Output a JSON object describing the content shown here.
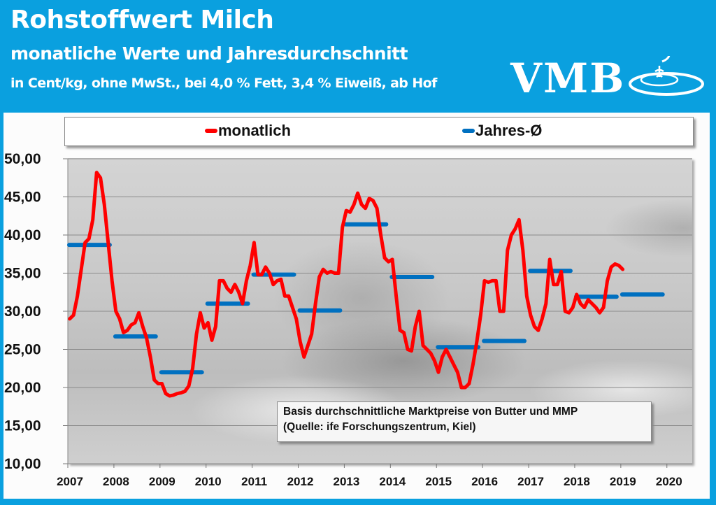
{
  "header": {
    "title": "Rohstoffwert Milch",
    "subtitle": "monatliche Werte und Jahresdurchschnitt",
    "unit_line": "in Cent/kg, ohne MwSt., bei 4,0 % Fett, 3,4 % Eiweiß, ab Hof",
    "logo_text": "VMB"
  },
  "note": {
    "line1": "Basis durchschnittliche Marktpreise von Butter und MMP",
    "line2": "(Quelle: ife Forschungszentrum, Kiel)"
  },
  "colors": {
    "header_bg": "#0aa0df",
    "monthly": "#ff0000",
    "annual": "#0070c0"
  },
  "chart_data": {
    "type": "line",
    "title": "Rohstoffwert Milch",
    "xlabel": "",
    "ylabel": "Cent/kg",
    "ylim": [
      10,
      50
    ],
    "yticks": [
      "50,00",
      "45,00",
      "40,00",
      "35,00",
      "30,00",
      "25,00",
      "20,00",
      "15,00",
      "10,00"
    ],
    "ytick_values": [
      50,
      45,
      40,
      35,
      30,
      25,
      20,
      15,
      10
    ],
    "xticks": [
      "2007",
      "2008",
      "2009",
      "2010",
      "2011",
      "2012",
      "2013",
      "2014",
      "2015",
      "2016",
      "2017",
      "2018",
      "2019",
      "2020"
    ],
    "x_start_year": 2007,
    "grid": true,
    "legend": {
      "position": "top",
      "entries": [
        "monatlich",
        "Jahres-Ø"
      ]
    },
    "series": [
      {
        "name": "monatlich",
        "type": "line",
        "values": [
          29.0,
          29.5,
          32.0,
          35.5,
          39.0,
          39.5,
          42.0,
          48.2,
          47.5,
          44.0,
          39.0,
          34.0,
          30.0,
          29.0,
          27.2,
          27.5,
          28.2,
          28.5,
          29.8,
          28.0,
          26.5,
          24.0,
          21.0,
          20.5,
          20.5,
          19.2,
          18.9,
          19.0,
          19.2,
          19.3,
          19.5,
          20.2,
          22.5,
          27.0,
          29.8,
          27.8,
          28.5,
          26.2,
          28.0,
          34.0,
          34.0,
          33.0,
          32.5,
          33.5,
          32.5,
          31.0,
          34.0,
          36.0,
          39.0,
          34.8,
          34.8,
          35.8,
          35.0,
          33.5,
          34.0,
          34.2,
          32.0,
          32.0,
          30.5,
          29.0,
          26.0,
          24.0,
          25.5,
          27.0,
          31.0,
          34.5,
          35.5,
          35.0,
          35.2,
          35.0,
          35.0,
          41.0,
          43.2,
          43.0,
          44.0,
          45.5,
          44.0,
          43.5,
          44.8,
          44.5,
          43.5,
          40.0,
          37.0,
          36.5,
          36.8,
          32.0,
          27.5,
          27.2,
          25.0,
          24.8,
          28.0,
          30.0,
          25.5,
          25.0,
          24.5,
          23.5,
          22.0,
          24.0,
          25.0,
          24.0,
          23.0,
          22.0,
          20.0,
          20.0,
          20.5,
          23.0,
          26.0,
          29.5,
          34.0,
          33.8,
          34.0,
          34.0,
          30.0,
          30.0,
          38.0,
          40.0,
          40.8,
          42.0,
          38.0,
          32.0,
          29.5,
          28.0,
          27.5,
          29.0,
          31.0,
          36.8,
          33.5,
          33.5,
          35.2,
          30.0,
          29.8,
          30.5,
          32.2,
          31.0,
          30.5,
          31.5,
          31.0,
          30.5,
          29.8,
          30.5,
          34.0,
          35.8,
          36.2,
          36.0,
          35.5
        ]
      },
      {
        "name": "Jahres-Ø",
        "type": "step",
        "values": [
          38.7,
          26.7,
          22.0,
          31.0,
          34.8,
          30.1,
          41.4,
          34.5,
          25.3,
          26.1,
          35.3,
          31.9,
          32.2
        ]
      }
    ]
  }
}
